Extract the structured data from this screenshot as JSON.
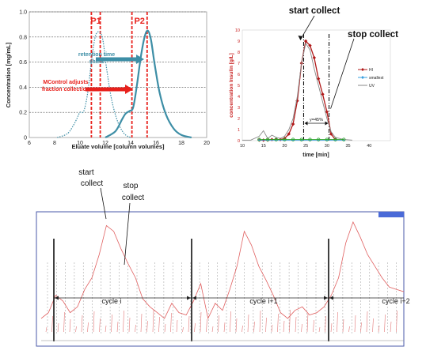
{
  "chart_data": [
    {
      "type": "line",
      "xlabel": "Eluate volume [column volumes]",
      "ylabel": "Concentration [mg/mL]",
      "xlim": [
        6,
        20
      ],
      "ylim": [
        0,
        1.0
      ],
      "xticks": [
        6,
        8,
        10,
        12,
        14,
        16,
        18,
        20
      ],
      "yticks": [
        0,
        0.2,
        0.4,
        0.6,
        0.8,
        1.0
      ],
      "ytick_labels": [
        "0",
        "0.2",
        "0.4",
        "0.6",
        "0.8",
        "1.0"
      ],
      "grid": "horizontal-dashed",
      "series": [
        {
          "name": "",
          "style": "dotted",
          "color": "#3d8ea6",
          "x": [
            8.2,
            9.0,
            9.5,
            9.8,
            10.0,
            10.3,
            10.6,
            10.9,
            11.2,
            11.5,
            11.8,
            12.1,
            12.5,
            13.0,
            13.5,
            14.0
          ],
          "y": [
            0.0,
            0.03,
            0.1,
            0.16,
            0.2,
            0.21,
            0.35,
            0.6,
            0.8,
            0.84,
            0.78,
            0.55,
            0.3,
            0.12,
            0.03,
            0.0
          ]
        },
        {
          "name": "",
          "style": "solid",
          "color": "#3d8ea6",
          "x": [
            12.0,
            12.8,
            13.3,
            13.6,
            13.9,
            14.2,
            14.5,
            14.8,
            15.1,
            15.35,
            15.6,
            15.9,
            16.3,
            16.8,
            17.4,
            18.0,
            18.8
          ],
          "y": [
            0.0,
            0.05,
            0.14,
            0.19,
            0.21,
            0.24,
            0.42,
            0.64,
            0.8,
            0.85,
            0.78,
            0.58,
            0.35,
            0.18,
            0.07,
            0.02,
            0.0
          ]
        }
      ],
      "fractions": [
        {
          "label": "P1",
          "x_start": 10.9,
          "x_end": 11.6
        },
        {
          "label": "P2",
          "x_start": 14.1,
          "x_end": 15.3
        }
      ],
      "annotations": [
        {
          "text": "retention time",
          "color": "#3d8ea6"
        },
        {
          "text": "shifts",
          "color": "#3d8ea6"
        },
        {
          "text": "MControl adjusts",
          "color": "#e8211c"
        },
        {
          "text": "fraction collection",
          "color": "#e8211c"
        }
      ]
    },
    {
      "type": "line",
      "xlabel": "time [min]",
      "ylabel": "concentration Insulin [g/L]",
      "xlim": [
        10,
        45
      ],
      "ylim": [
        0,
        10
      ],
      "xticks": [
        10,
        15,
        20,
        25,
        30,
        35,
        40
      ],
      "yticks": [
        0,
        1,
        2,
        3,
        4,
        5,
        6,
        7,
        8,
        9,
        10
      ],
      "series": [
        {
          "name": "HI",
          "color": "#b01818",
          "marker": "diamond",
          "x": [
            14,
            15,
            16,
            17,
            18,
            19,
            20,
            21,
            22,
            23,
            24,
            25,
            26,
            27,
            28,
            29,
            30,
            31,
            32
          ],
          "y": [
            0.05,
            0.05,
            0.05,
            0.1,
            0.1,
            0.1,
            0.2,
            0.6,
            1.5,
            3.6,
            7.0,
            9.0,
            8.6,
            7.5,
            5.6,
            4.2,
            2.6,
            0.6,
            0.1
          ]
        },
        {
          "name": "smallest",
          "color": "#3aa0e0",
          "marker": "diamond",
          "x": [
            14,
            16,
            18,
            20,
            22,
            24,
            26,
            28,
            30,
            32,
            34
          ],
          "y": [
            0.05,
            0.05,
            0.05,
            0.05,
            0.05,
            0.05,
            0.05,
            0.05,
            0.05,
            0.05,
            0.05
          ]
        },
        {
          "name": "UV",
          "color": "#888888",
          "marker": "none",
          "x": [
            10,
            12,
            14,
            15,
            16,
            17,
            18,
            19,
            20,
            21,
            22,
            23,
            24,
            25,
            26,
            27,
            28,
            29,
            30,
            31,
            32,
            34,
            36
          ],
          "y": [
            0.05,
            0.05,
            0.4,
            0.9,
            0.2,
            0.5,
            0.3,
            0.2,
            0.4,
            1.0,
            2.0,
            4.0,
            7.0,
            8.8,
            8.2,
            6.5,
            5.0,
            3.5,
            2.0,
            0.8,
            0.3,
            0.1,
            0.05
          ]
        },
        {
          "name": "",
          "color": "#2da42d",
          "marker": "circle",
          "x": [
            14,
            16,
            18,
            20,
            22,
            24,
            26,
            28,
            30,
            32,
            34
          ],
          "y": [
            0.1,
            0.1,
            0.1,
            0.1,
            0.1,
            0.1,
            0.1,
            0.1,
            0.1,
            0.1,
            0.1
          ]
        }
      ],
      "collect_window": {
        "start": 24.5,
        "stop": 30.5,
        "label": "y=45%"
      },
      "annotations": [
        {
          "text": "start collect"
        },
        {
          "text": "stop collect"
        }
      ]
    },
    {
      "type": "line",
      "title": "",
      "annotations": [
        {
          "text": "start"
        },
        {
          "text": "collect"
        },
        {
          "text": "stop"
        },
        {
          "text": "collect"
        }
      ],
      "cycles": [
        {
          "label": "cycle i"
        },
        {
          "label": "cycle i+1"
        },
        {
          "label": "cycle i+2"
        }
      ],
      "series": [
        {
          "name": "",
          "color": "#e06060",
          "x": [
            0,
            2,
            4,
            6,
            8,
            10,
            12,
            14,
            16,
            18,
            20,
            22,
            24,
            26,
            28,
            30,
            32,
            34,
            36,
            38,
            40,
            42,
            44,
            46,
            48,
            50,
            52,
            54,
            56,
            58,
            60,
            62,
            64,
            66,
            68,
            70,
            72,
            74,
            76,
            78,
            80,
            82,
            84,
            86,
            88,
            90,
            92,
            94,
            96,
            98,
            100
          ],
          "y": [
            0.15,
            0.2,
            0.35,
            0.3,
            0.2,
            0.25,
            0.4,
            0.5,
            0.7,
            0.95,
            0.9,
            0.75,
            0.62,
            0.5,
            0.32,
            0.25,
            0.2,
            0.15,
            0.28,
            0.2,
            0.18,
            0.3,
            0.45,
            0.15,
            0.28,
            0.22,
            0.4,
            0.6,
            0.9,
            0.78,
            0.6,
            0.48,
            0.35,
            0.2,
            0.15,
            0.22,
            0.25,
            0.18,
            0.2,
            0.25,
            0.35,
            0.5,
            0.8,
            0.98,
            0.85,
            0.7,
            0.6,
            0.5,
            0.42,
            0.4,
            0.38
          ]
        }
      ]
    }
  ]
}
